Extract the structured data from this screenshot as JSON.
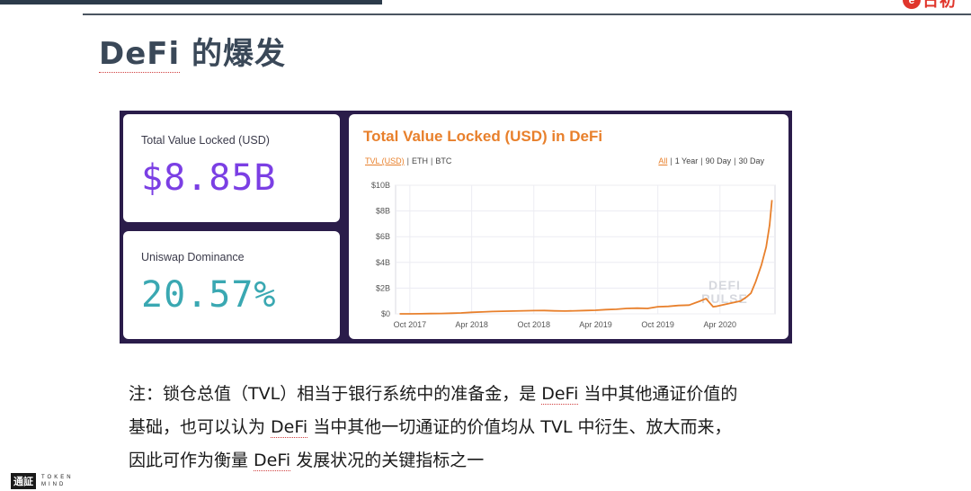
{
  "header": {
    "brand_text": "日初"
  },
  "page": {
    "title_prefix": "DeFi",
    "title_suffix": " 的爆发"
  },
  "stats": {
    "tvl_label": "Total Value Locked (USD)",
    "tvl_value": "$8.85B",
    "tvl_color": "#7b3fe4",
    "uni_label": "Uniswap Dominance",
    "uni_value": "20.57%",
    "uni_color": "#3aa8b2"
  },
  "chart_panel": {
    "title": "Total Value Locked (USD) in DeFi",
    "currency_options": [
      "TVL (USD)",
      "ETH",
      "BTC"
    ],
    "currency_selected": "TVL (USD)",
    "range_options": [
      "All",
      "1 Year",
      "90 Day",
      "30 Day"
    ],
    "range_selected": "All",
    "watermark_line1": "DEFI",
    "watermark_line2": "PULSE",
    "line_color": "#e8802c"
  },
  "chart_data": {
    "type": "line",
    "title": "Total Value Locked (USD) in DeFi",
    "xlabel": "",
    "ylabel": "",
    "y_ticks": [
      "$0",
      "$2B",
      "$4B",
      "$6B",
      "$8B",
      "$10B"
    ],
    "x_ticks": [
      "Oct 2017",
      "Apr 2018",
      "Oct 2018",
      "Apr 2019",
      "Oct 2019",
      "Apr 2020"
    ],
    "ylim": [
      0,
      10
    ],
    "y_unit": "billion USD",
    "grid": true,
    "series": [
      {
        "x": [
          "2017-09-01",
          "2017-10-01",
          "2017-11-01",
          "2017-12-01",
          "2018-01-01",
          "2018-02-01",
          "2018-03-01",
          "2018-04-01",
          "2018-05-01",
          "2018-06-01",
          "2018-07-01",
          "2018-08-01",
          "2018-09-01",
          "2018-10-01",
          "2018-11-01",
          "2018-12-01",
          "2019-01-01",
          "2019-02-01",
          "2019-03-01",
          "2019-04-01",
          "2019-05-01",
          "2019-06-01",
          "2019-07-01",
          "2019-08-01",
          "2019-09-01",
          "2019-10-01",
          "2019-11-01",
          "2019-12-01",
          "2020-01-01",
          "2020-02-01",
          "2020-02-20",
          "2020-03-12",
          "2020-03-20",
          "2020-04-01",
          "2020-05-01",
          "2020-06-01",
          "2020-06-20",
          "2020-07-01",
          "2020-07-15",
          "2020-08-01",
          "2020-08-15",
          "2020-08-25",
          "2020-09-01"
        ],
        "values": [
          0.0,
          0.0,
          0.01,
          0.02,
          0.03,
          0.05,
          0.07,
          0.12,
          0.15,
          0.18,
          0.2,
          0.22,
          0.24,
          0.25,
          0.26,
          0.23,
          0.22,
          0.24,
          0.26,
          0.28,
          0.33,
          0.36,
          0.42,
          0.44,
          0.42,
          0.55,
          0.58,
          0.65,
          0.68,
          0.98,
          1.18,
          0.55,
          0.58,
          0.65,
          0.82,
          1.0,
          1.35,
          1.6,
          2.5,
          3.8,
          5.2,
          6.9,
          8.85
        ]
      }
    ]
  },
  "note": {
    "line1_a": "注：锁仓总值（TVL）相当于银行系统中的准备金，是 ",
    "line1_b": "DeFi",
    "line1_c": " 当中其他通证价值的",
    "line2_a": "基础，也可以认为 ",
    "line2_b": "DeFi",
    "line2_c": " 当中其他一切通证的价值均从 TVL 中衍生、放大而来，",
    "line3_a": "因此可作为衡量 ",
    "line3_b": "DeFi",
    "line3_c": " 发展状况的关键指标之一"
  },
  "footer": {
    "mark": "通証",
    "line1": "TOKEN",
    "line2": "MIND"
  }
}
